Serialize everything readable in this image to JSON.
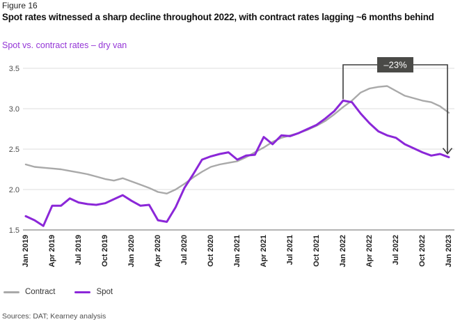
{
  "header": {
    "figure_label": "Figure 16",
    "title": "Spot rates witnessed a sharp decline throughout 2022, with contract rates lagging ~6 months behind",
    "subtitle": "Spot vs. contract rates – dry van"
  },
  "legend": {
    "items": [
      {
        "label": "Contract",
        "color": "#a9a9a9"
      },
      {
        "label": "Spot",
        "color": "#8b27d8"
      }
    ]
  },
  "source": "Sources: DAT; Kearney analysis",
  "colors": {
    "spot_purple": "#8b27d8",
    "contract_gray": "#a9a9a9",
    "subtitle_purple": "#9334d6",
    "annotation_box": "#4a4a47",
    "annotation_text": "#ffffff",
    "bracket": "#3c3c3c",
    "grid": "#dcdcdc",
    "baseline": "#9b9b9b",
    "xtick_text": "#1f1f1f",
    "ytick_text": "#4d4d4d"
  },
  "chart_data": {
    "type": "line",
    "title": "Spot vs. contract rates – dry van",
    "x_unit": "month",
    "x_start": "Jan 2019",
    "x_end": "Jan 2023",
    "x_ticks": [
      {
        "m": 0,
        "label": "Jan 2019"
      },
      {
        "m": 3,
        "label": "Apr 2019"
      },
      {
        "m": 6,
        "label": "Jul 2019"
      },
      {
        "m": 9,
        "label": "Oct 2019"
      },
      {
        "m": 12,
        "label": "Jan 2020"
      },
      {
        "m": 15,
        "label": "Apr 2020"
      },
      {
        "m": 18,
        "label": "Jul 2020"
      },
      {
        "m": 21,
        "label": "Oct 2020"
      },
      {
        "m": 24,
        "label": "Jan 2021"
      },
      {
        "m": 27,
        "label": "Apr 2021"
      },
      {
        "m": 30,
        "label": "Jul 2021"
      },
      {
        "m": 33,
        "label": "Oct 2021"
      },
      {
        "m": 36,
        "label": "Jan 2022"
      },
      {
        "m": 39,
        "label": "Apr 2022"
      },
      {
        "m": 42,
        "label": "Jul 2022"
      },
      {
        "m": 45,
        "label": "Oct 2022"
      },
      {
        "m": 48,
        "label": "Jan 2023"
      }
    ],
    "ylim": [
      1.5,
      3.5
    ],
    "yticks": [
      1.5,
      2.0,
      2.5,
      3.0,
      3.5
    ],
    "grid": "horizontal",
    "legend_position": "bottom-left",
    "series": [
      {
        "name": "Contract",
        "color": "#a9a9a9",
        "values": [
          2.31,
          2.28,
          2.27,
          2.26,
          2.25,
          2.23,
          2.21,
          2.19,
          2.16,
          2.13,
          2.11,
          2.14,
          2.1,
          2.06,
          2.02,
          1.97,
          1.95,
          2.0,
          2.07,
          2.15,
          2.22,
          2.28,
          2.31,
          2.33,
          2.35,
          2.4,
          2.46,
          2.52,
          2.59,
          2.64,
          2.67,
          2.7,
          2.74,
          2.79,
          2.85,
          2.93,
          3.02,
          3.1,
          3.2,
          3.25,
          3.27,
          3.28,
          3.22,
          3.16,
          3.13,
          3.1,
          3.08,
          3.03,
          2.95
        ]
      },
      {
        "name": "Spot",
        "color": "#8b27d8",
        "values": [
          1.67,
          1.62,
          1.55,
          1.8,
          1.8,
          1.89,
          1.84,
          1.82,
          1.81,
          1.83,
          1.88,
          1.93,
          1.86,
          1.8,
          1.81,
          1.62,
          1.6,
          1.78,
          2.02,
          2.19,
          2.37,
          2.41,
          2.44,
          2.46,
          2.37,
          2.42,
          2.43,
          2.65,
          2.56,
          2.67,
          2.66,
          2.7,
          2.75,
          2.8,
          2.88,
          2.97,
          3.1,
          3.08,
          2.94,
          2.82,
          2.72,
          2.67,
          2.64,
          2.56,
          2.51,
          2.46,
          2.42,
          2.44,
          2.4
        ]
      }
    ],
    "annotation": {
      "label": "–23%",
      "series": "Spot",
      "from_month_index": 36,
      "to_month_index": 48
    }
  }
}
